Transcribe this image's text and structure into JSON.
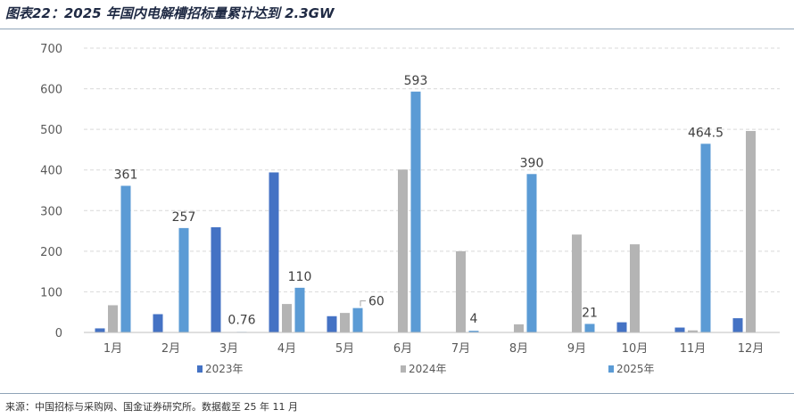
{
  "title": "图表22：2025 年国内电解槽招标量累计达到 2.3GW",
  "source": "来源：中国招标与采购网、国金证券研究所。数据截至 25 年 11 月",
  "chart_data": {
    "type": "bar",
    "title": "",
    "xlabel": "",
    "ylabel": "",
    "ylim": [
      0,
      700
    ],
    "yticks": [
      0,
      100,
      200,
      300,
      400,
      500,
      600,
      700
    ],
    "grid": true,
    "legend_position": "bottom",
    "categories": [
      "1月",
      "2月",
      "3月",
      "4月",
      "5月",
      "6月",
      "7月",
      "8月",
      "9月",
      "10月",
      "11月",
      "12月"
    ],
    "series": [
      {
        "name": "2023年",
        "color": "#4472c4",
        "values": [
          10,
          45,
          259,
          394,
          40,
          0,
          0,
          0,
          0,
          25,
          12,
          35
        ]
      },
      {
        "name": "2024年",
        "color": "#b4b4b4",
        "values": [
          67,
          0,
          0,
          70,
          48,
          401,
          200,
          20,
          241,
          217,
          5,
          496
        ]
      },
      {
        "name": "2025年",
        "color": "#5b9bd5",
        "values": [
          361,
          257,
          0.76,
          110,
          60,
          593,
          4,
          390,
          21,
          null,
          464.5,
          null
        ]
      }
    ],
    "data_labels": [
      {
        "series": 2,
        "index": 0,
        "text": "361"
      },
      {
        "series": 2,
        "index": 1,
        "text": "257"
      },
      {
        "series": 2,
        "index": 2,
        "text": "0.76"
      },
      {
        "series": 2,
        "index": 3,
        "text": "110"
      },
      {
        "series": 2,
        "index": 4,
        "text": "60"
      },
      {
        "series": 2,
        "index": 5,
        "text": "593"
      },
      {
        "series": 2,
        "index": 6,
        "text": "4"
      },
      {
        "series": 2,
        "index": 7,
        "text": "390"
      },
      {
        "series": 2,
        "index": 8,
        "text": "21"
      },
      {
        "series": 2,
        "index": 10,
        "text": "464.5"
      }
    ]
  }
}
